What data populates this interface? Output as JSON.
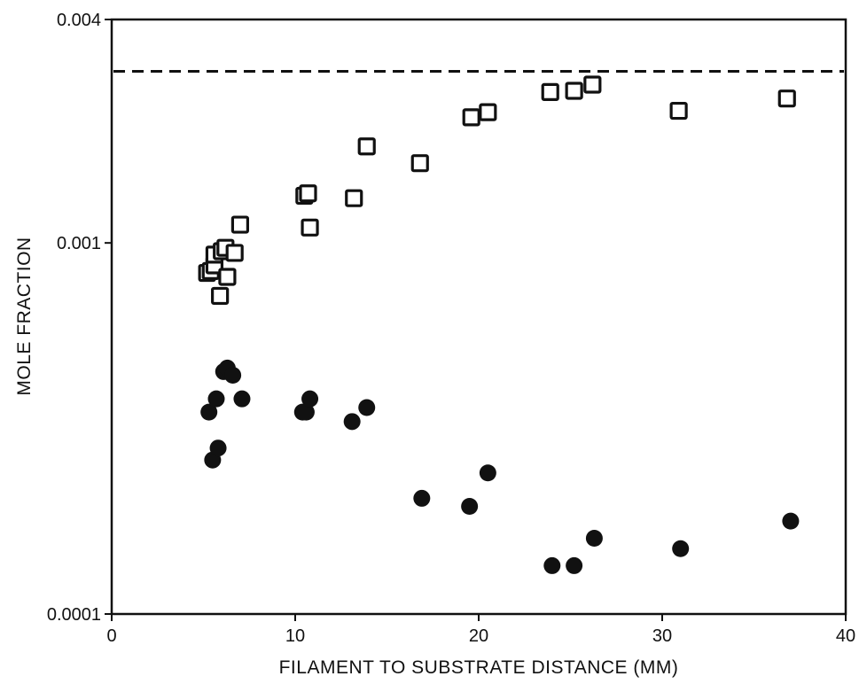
{
  "chart_data": {
    "type": "scatter",
    "title": "",
    "xlabel": "FILAMENT TO SUBSTRATE DISTANCE (MM)",
    "ylabel": "MOLE FRACTION",
    "xlim": [
      0,
      40
    ],
    "ylim": [
      0.0001,
      0.004
    ],
    "yscale": "log",
    "grid": false,
    "legend": "none",
    "x_ticks": [
      0,
      10,
      20,
      30,
      40
    ],
    "x_tick_labels": [
      "0",
      "10",
      "20",
      "30",
      "40"
    ],
    "y_ticks": [
      0.0001,
      0.001,
      0.004
    ],
    "y_tick_labels": [
      "0.0001",
      "0.001",
      "0.004"
    ],
    "reference_line": {
      "y": 0.0029,
      "style": "dashed"
    },
    "series": [
      {
        "marker": "open-square",
        "color": "#111111",
        "points": [
          {
            "x": 5.2,
            "y": 0.00083
          },
          {
            "x": 5.4,
            "y": 0.00084
          },
          {
            "x": 5.6,
            "y": 0.00087
          },
          {
            "x": 5.6,
            "y": 0.00093
          },
          {
            "x": 5.9,
            "y": 0.00072
          },
          {
            "x": 6.0,
            "y": 0.00095
          },
          {
            "x": 6.2,
            "y": 0.00097
          },
          {
            "x": 6.3,
            "y": 0.00081
          },
          {
            "x": 6.7,
            "y": 0.00094
          },
          {
            "x": 7.0,
            "y": 0.00112
          },
          {
            "x": 10.5,
            "y": 0.00134
          },
          {
            "x": 10.7,
            "y": 0.00136
          },
          {
            "x": 10.8,
            "y": 0.0011
          },
          {
            "x": 13.2,
            "y": 0.00132
          },
          {
            "x": 13.9,
            "y": 0.00182
          },
          {
            "x": 16.8,
            "y": 0.00164
          },
          {
            "x": 19.6,
            "y": 0.00218
          },
          {
            "x": 20.5,
            "y": 0.00225
          },
          {
            "x": 23.9,
            "y": 0.00255
          },
          {
            "x": 25.2,
            "y": 0.00257
          },
          {
            "x": 26.2,
            "y": 0.00267
          },
          {
            "x": 30.9,
            "y": 0.00227
          },
          {
            "x": 36.8,
            "y": 0.00245
          }
        ]
      },
      {
        "marker": "filled-circle",
        "color": "#111111",
        "points": [
          {
            "x": 5.3,
            "y": 0.00035
          },
          {
            "x": 5.5,
            "y": 0.00026
          },
          {
            "x": 5.7,
            "y": 0.00038
          },
          {
            "x": 5.8,
            "y": 0.00028
          },
          {
            "x": 6.1,
            "y": 0.00045
          },
          {
            "x": 6.3,
            "y": 0.00046
          },
          {
            "x": 6.6,
            "y": 0.00044
          },
          {
            "x": 7.1,
            "y": 0.00038
          },
          {
            "x": 10.4,
            "y": 0.00035
          },
          {
            "x": 10.6,
            "y": 0.00035
          },
          {
            "x": 10.8,
            "y": 0.00038
          },
          {
            "x": 13.1,
            "y": 0.00033
          },
          {
            "x": 13.9,
            "y": 0.00036
          },
          {
            "x": 16.9,
            "y": 0.000205
          },
          {
            "x": 19.5,
            "y": 0.000195
          },
          {
            "x": 20.5,
            "y": 0.00024
          },
          {
            "x": 24.0,
            "y": 0.000135
          },
          {
            "x": 25.2,
            "y": 0.000135
          },
          {
            "x": 26.3,
            "y": 0.00016
          },
          {
            "x": 31.0,
            "y": 0.00015
          },
          {
            "x": 37.0,
            "y": 0.000178
          }
        ]
      }
    ]
  }
}
